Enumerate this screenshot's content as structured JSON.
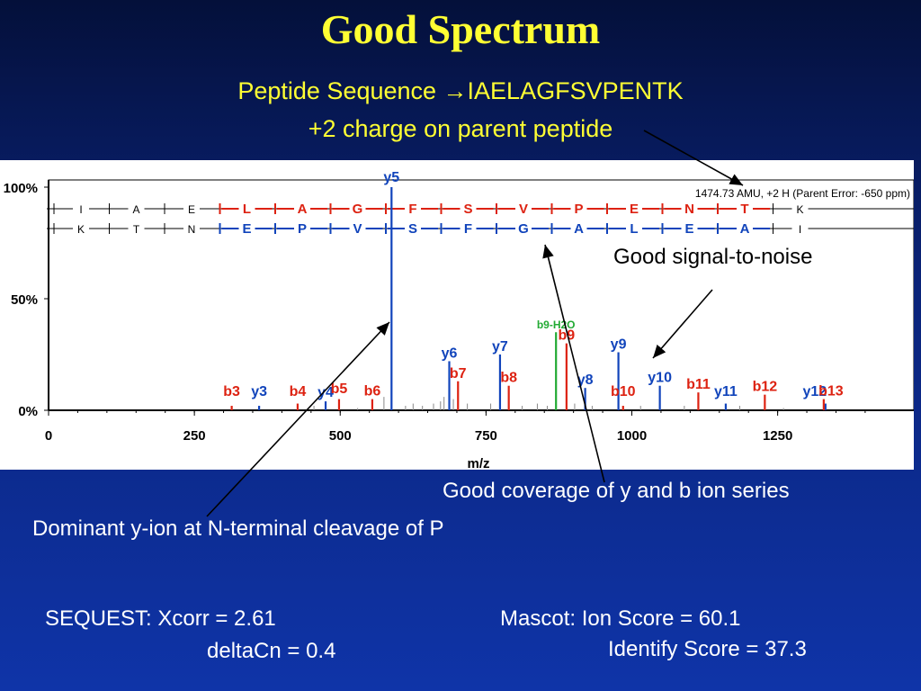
{
  "title": "Good Spectrum",
  "subtitle_line1": "Peptide Sequence →IAELAGFSVPENTK",
  "subtitle_line2": "+2 charge on parent peptide",
  "annotations": {
    "signal_noise": "Good signal-to-noise",
    "coverage": "Good coverage of y and b ion series",
    "dominant": "Dominant y-ion at N-terminal cleavage of P"
  },
  "sequest": {
    "xcorr": "SEQUEST:  Xcorr = 2.61",
    "deltacn": "deltaCn = 0.4"
  },
  "mascot": {
    "ion_score": "Mascot:  Ion Score = 60.1",
    "identify_score": "Identify Score = 37.3"
  },
  "colors": {
    "b_ion": "#dd2211",
    "y_ion": "#1144bb",
    "neutral_loss": "#22aa33",
    "text": "#ffff33"
  },
  "chart_data": {
    "type": "bar",
    "xlabel": "m/z",
    "ylabel": "",
    "xlim": [
      0,
      1450
    ],
    "ylim": [
      0,
      100
    ],
    "x_ticks": [
      "0",
      "250",
      "500",
      "750",
      "1000",
      "1250"
    ],
    "y_ticks": [
      "100%",
      "50%",
      "0%"
    ],
    "parent_info": "1474.73 AMU, +2 H (Parent Error: -650 ppm)",
    "b_sequence": [
      "I",
      "A",
      "E",
      "L",
      "A",
      "G",
      "F",
      "S",
      "V",
      "P",
      "E",
      "N",
      "T",
      "K"
    ],
    "y_sequence": [
      "K",
      "T",
      "N",
      "E",
      "P",
      "V",
      "S",
      "F",
      "G",
      "A",
      "L",
      "E",
      "A",
      "I"
    ],
    "series": [
      {
        "name": "y ions",
        "peaks": [
          {
            "label": "y3",
            "mz": 361,
            "intensity": 2
          },
          {
            "label": "y4",
            "mz": 475,
            "intensity": 4
          },
          {
            "label": "y5",
            "mz": 588,
            "intensity": 100
          },
          {
            "label": "y6",
            "mz": 687,
            "intensity": 22
          },
          {
            "label": "y7",
            "mz": 774,
            "intensity": 25
          },
          {
            "label": "y8",
            "mz": 920,
            "intensity": 10
          },
          {
            "label": "y9",
            "mz": 977,
            "intensity": 26
          },
          {
            "label": "y10",
            "mz": 1048,
            "intensity": 11
          },
          {
            "label": "y11",
            "mz": 1161,
            "intensity": 3
          },
          {
            "label": "y12",
            "mz": 1332,
            "intensity": 3
          }
        ]
      },
      {
        "name": "b ions",
        "peaks": [
          {
            "label": "b3",
            "mz": 314,
            "intensity": 2
          },
          {
            "label": "b4",
            "mz": 427,
            "intensity": 3
          },
          {
            "label": "b5",
            "mz": 498,
            "intensity": 5
          },
          {
            "label": "b6",
            "mz": 555,
            "intensity": 5
          },
          {
            "label": "b7",
            "mz": 702,
            "intensity": 13
          },
          {
            "label": "b8",
            "mz": 789,
            "intensity": 11
          },
          {
            "label": "b9",
            "mz": 888,
            "intensity": 30
          },
          {
            "label": "b10",
            "mz": 985,
            "intensity": 2
          },
          {
            "label": "b11",
            "mz": 1114,
            "intensity": 8
          },
          {
            "label": "b12",
            "mz": 1228,
            "intensity": 7
          },
          {
            "label": "b13",
            "mz": 1329,
            "intensity": 5
          }
        ]
      },
      {
        "name": "neutral loss",
        "peaks": [
          {
            "label": "b9-H2O",
            "mz": 870,
            "intensity": 35
          }
        ]
      },
      {
        "name": "other",
        "peaks": [
          {
            "label": "",
            "mz": 455,
            "intensity": 2
          },
          {
            "label": "",
            "mz": 530,
            "intensity": 1
          },
          {
            "label": "",
            "mz": 575,
            "intensity": 6
          },
          {
            "label": "",
            "mz": 612,
            "intensity": 2
          },
          {
            "label": "",
            "mz": 625,
            "intensity": 3
          },
          {
            "label": "",
            "mz": 641,
            "intensity": 2
          },
          {
            "label": "",
            "mz": 660,
            "intensity": 3
          },
          {
            "label": "",
            "mz": 672,
            "intensity": 4
          },
          {
            "label": "",
            "mz": 678,
            "intensity": 6
          },
          {
            "label": "",
            "mz": 694,
            "intensity": 5
          },
          {
            "label": "",
            "mz": 718,
            "intensity": 3
          },
          {
            "label": "",
            "mz": 758,
            "intensity": 3
          },
          {
            "label": "",
            "mz": 812,
            "intensity": 2
          },
          {
            "label": "",
            "mz": 838,
            "intensity": 3
          },
          {
            "label": "",
            "mz": 855,
            "intensity": 2
          },
          {
            "label": "",
            "mz": 902,
            "intensity": 3
          },
          {
            "label": "",
            "mz": 932,
            "intensity": 2
          },
          {
            "label": "",
            "mz": 1015,
            "intensity": 2
          },
          {
            "label": "",
            "mz": 1090,
            "intensity": 2
          },
          {
            "label": "",
            "mz": 1185,
            "intensity": 2
          },
          {
            "label": "",
            "mz": 1260,
            "intensity": 1
          }
        ]
      }
    ]
  }
}
